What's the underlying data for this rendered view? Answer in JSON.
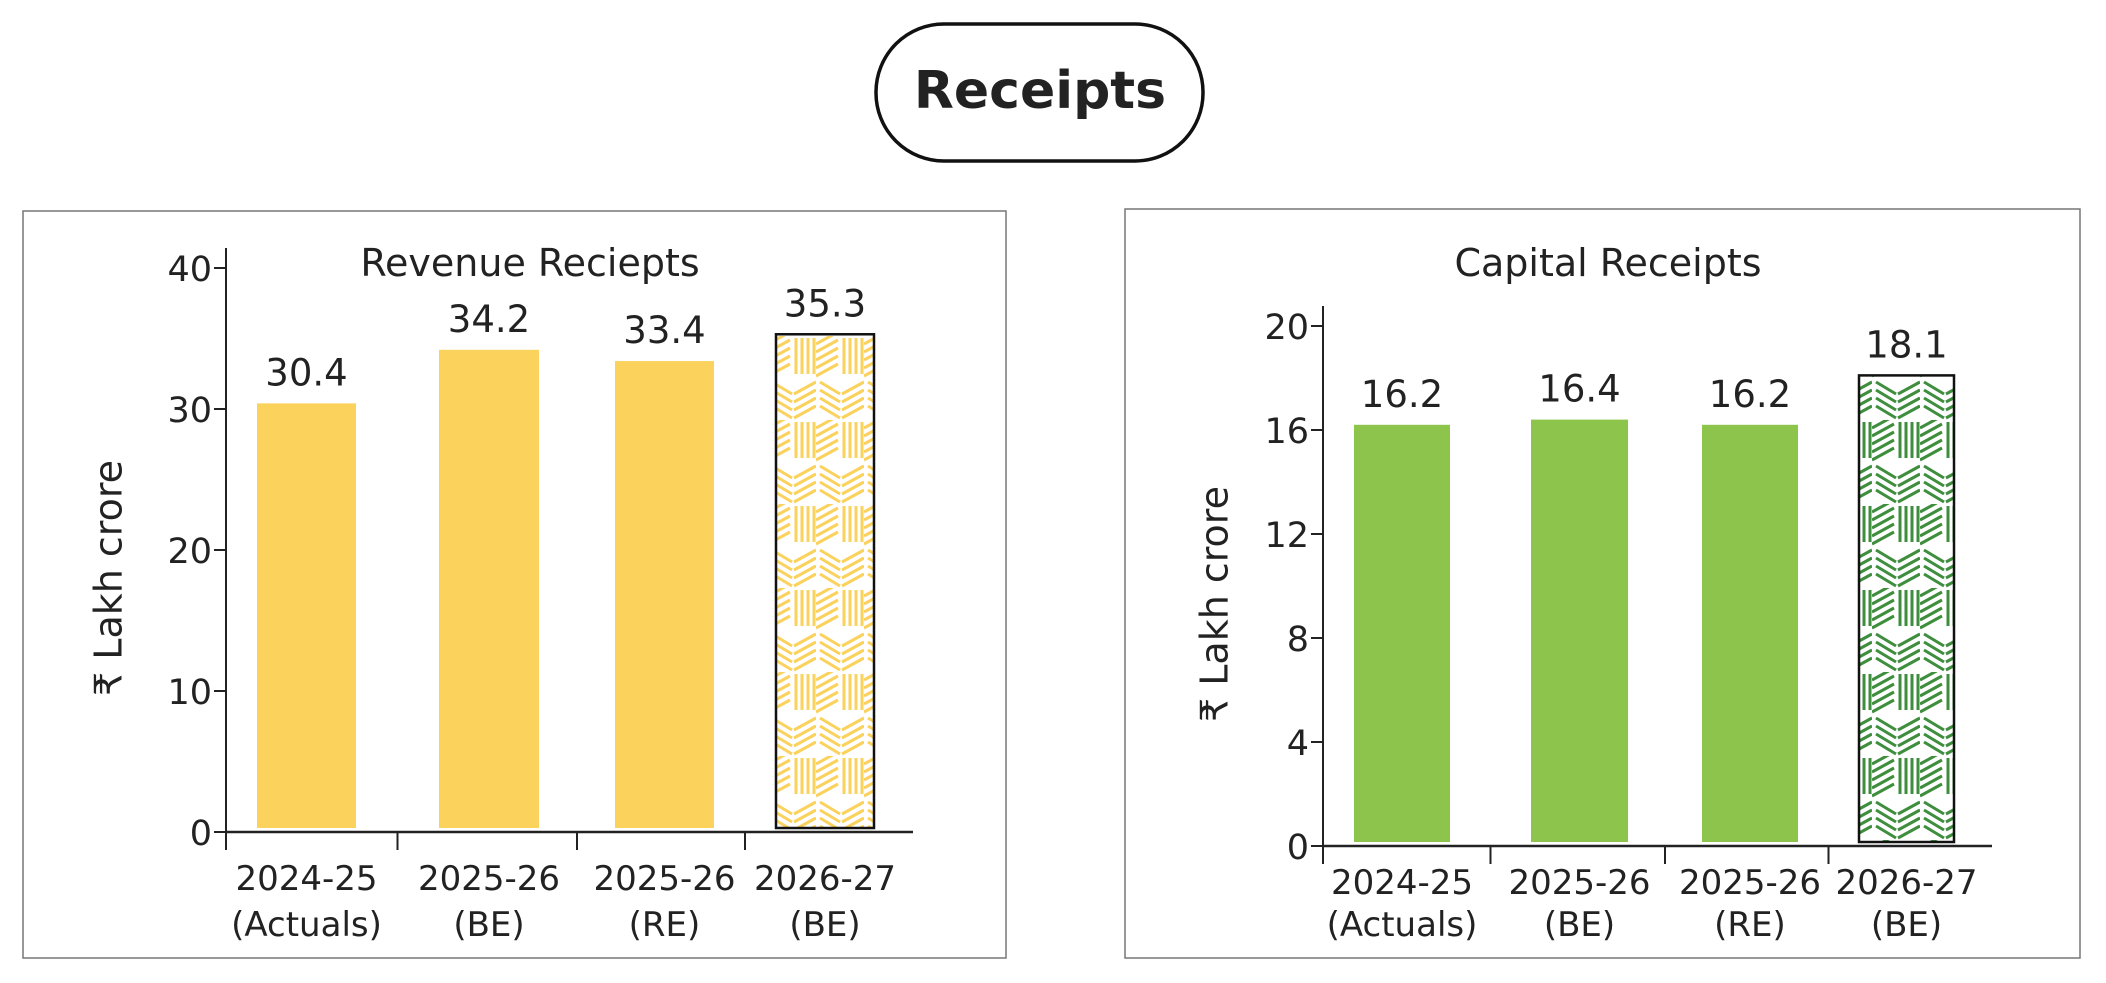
{
  "header": {
    "title": "Receipts"
  },
  "colors": {
    "revenue": "#FAD25C",
    "capital": "#8DC44C",
    "capital_pattern": "#3E8E3E",
    "axis": "#222222"
  },
  "chart_data": [
    {
      "type": "bar",
      "title": "Revenue Reciepts",
      "ylabel": "₹ Lakh crore",
      "xlabel": "",
      "ylim": [
        0,
        40
      ],
      "yticks": [
        "0",
        "10",
        "20",
        "30",
        "40"
      ],
      "categories": [
        {
          "line1": "2024-25",
          "line2": "(Actuals)"
        },
        {
          "line1": "2025-26",
          "line2": "(BE)"
        },
        {
          "line1": "2025-26",
          "line2": "(RE)"
        },
        {
          "line1": "2026-27",
          "line2": "(BE)"
        }
      ],
      "values": [
        30.4,
        34.2,
        33.4,
        35.3
      ],
      "labels": [
        "30.4",
        "34.2",
        "33.4",
        "35.3"
      ],
      "patterned": [
        false,
        false,
        false,
        true
      ],
      "grid": false
    },
    {
      "type": "bar",
      "title": "Capital Receipts",
      "ylabel": "₹ Lakh crore",
      "xlabel": "",
      "ylim": [
        0,
        20
      ],
      "yticks": [
        "0",
        "4",
        "8",
        "12",
        "16",
        "20"
      ],
      "categories": [
        {
          "line1": "2024-25",
          "line2": "(Actuals)"
        },
        {
          "line1": "2025-26",
          "line2": "(BE)"
        },
        {
          "line1": "2025-26",
          "line2": "(RE)"
        },
        {
          "line1": "2026-27",
          "line2": "(BE)"
        }
      ],
      "values": [
        16.2,
        16.4,
        16.2,
        18.1
      ],
      "labels": [
        "16.2",
        "16.4",
        "16.2",
        "18.1"
      ],
      "patterned": [
        false,
        false,
        false,
        true
      ],
      "grid": false
    }
  ]
}
